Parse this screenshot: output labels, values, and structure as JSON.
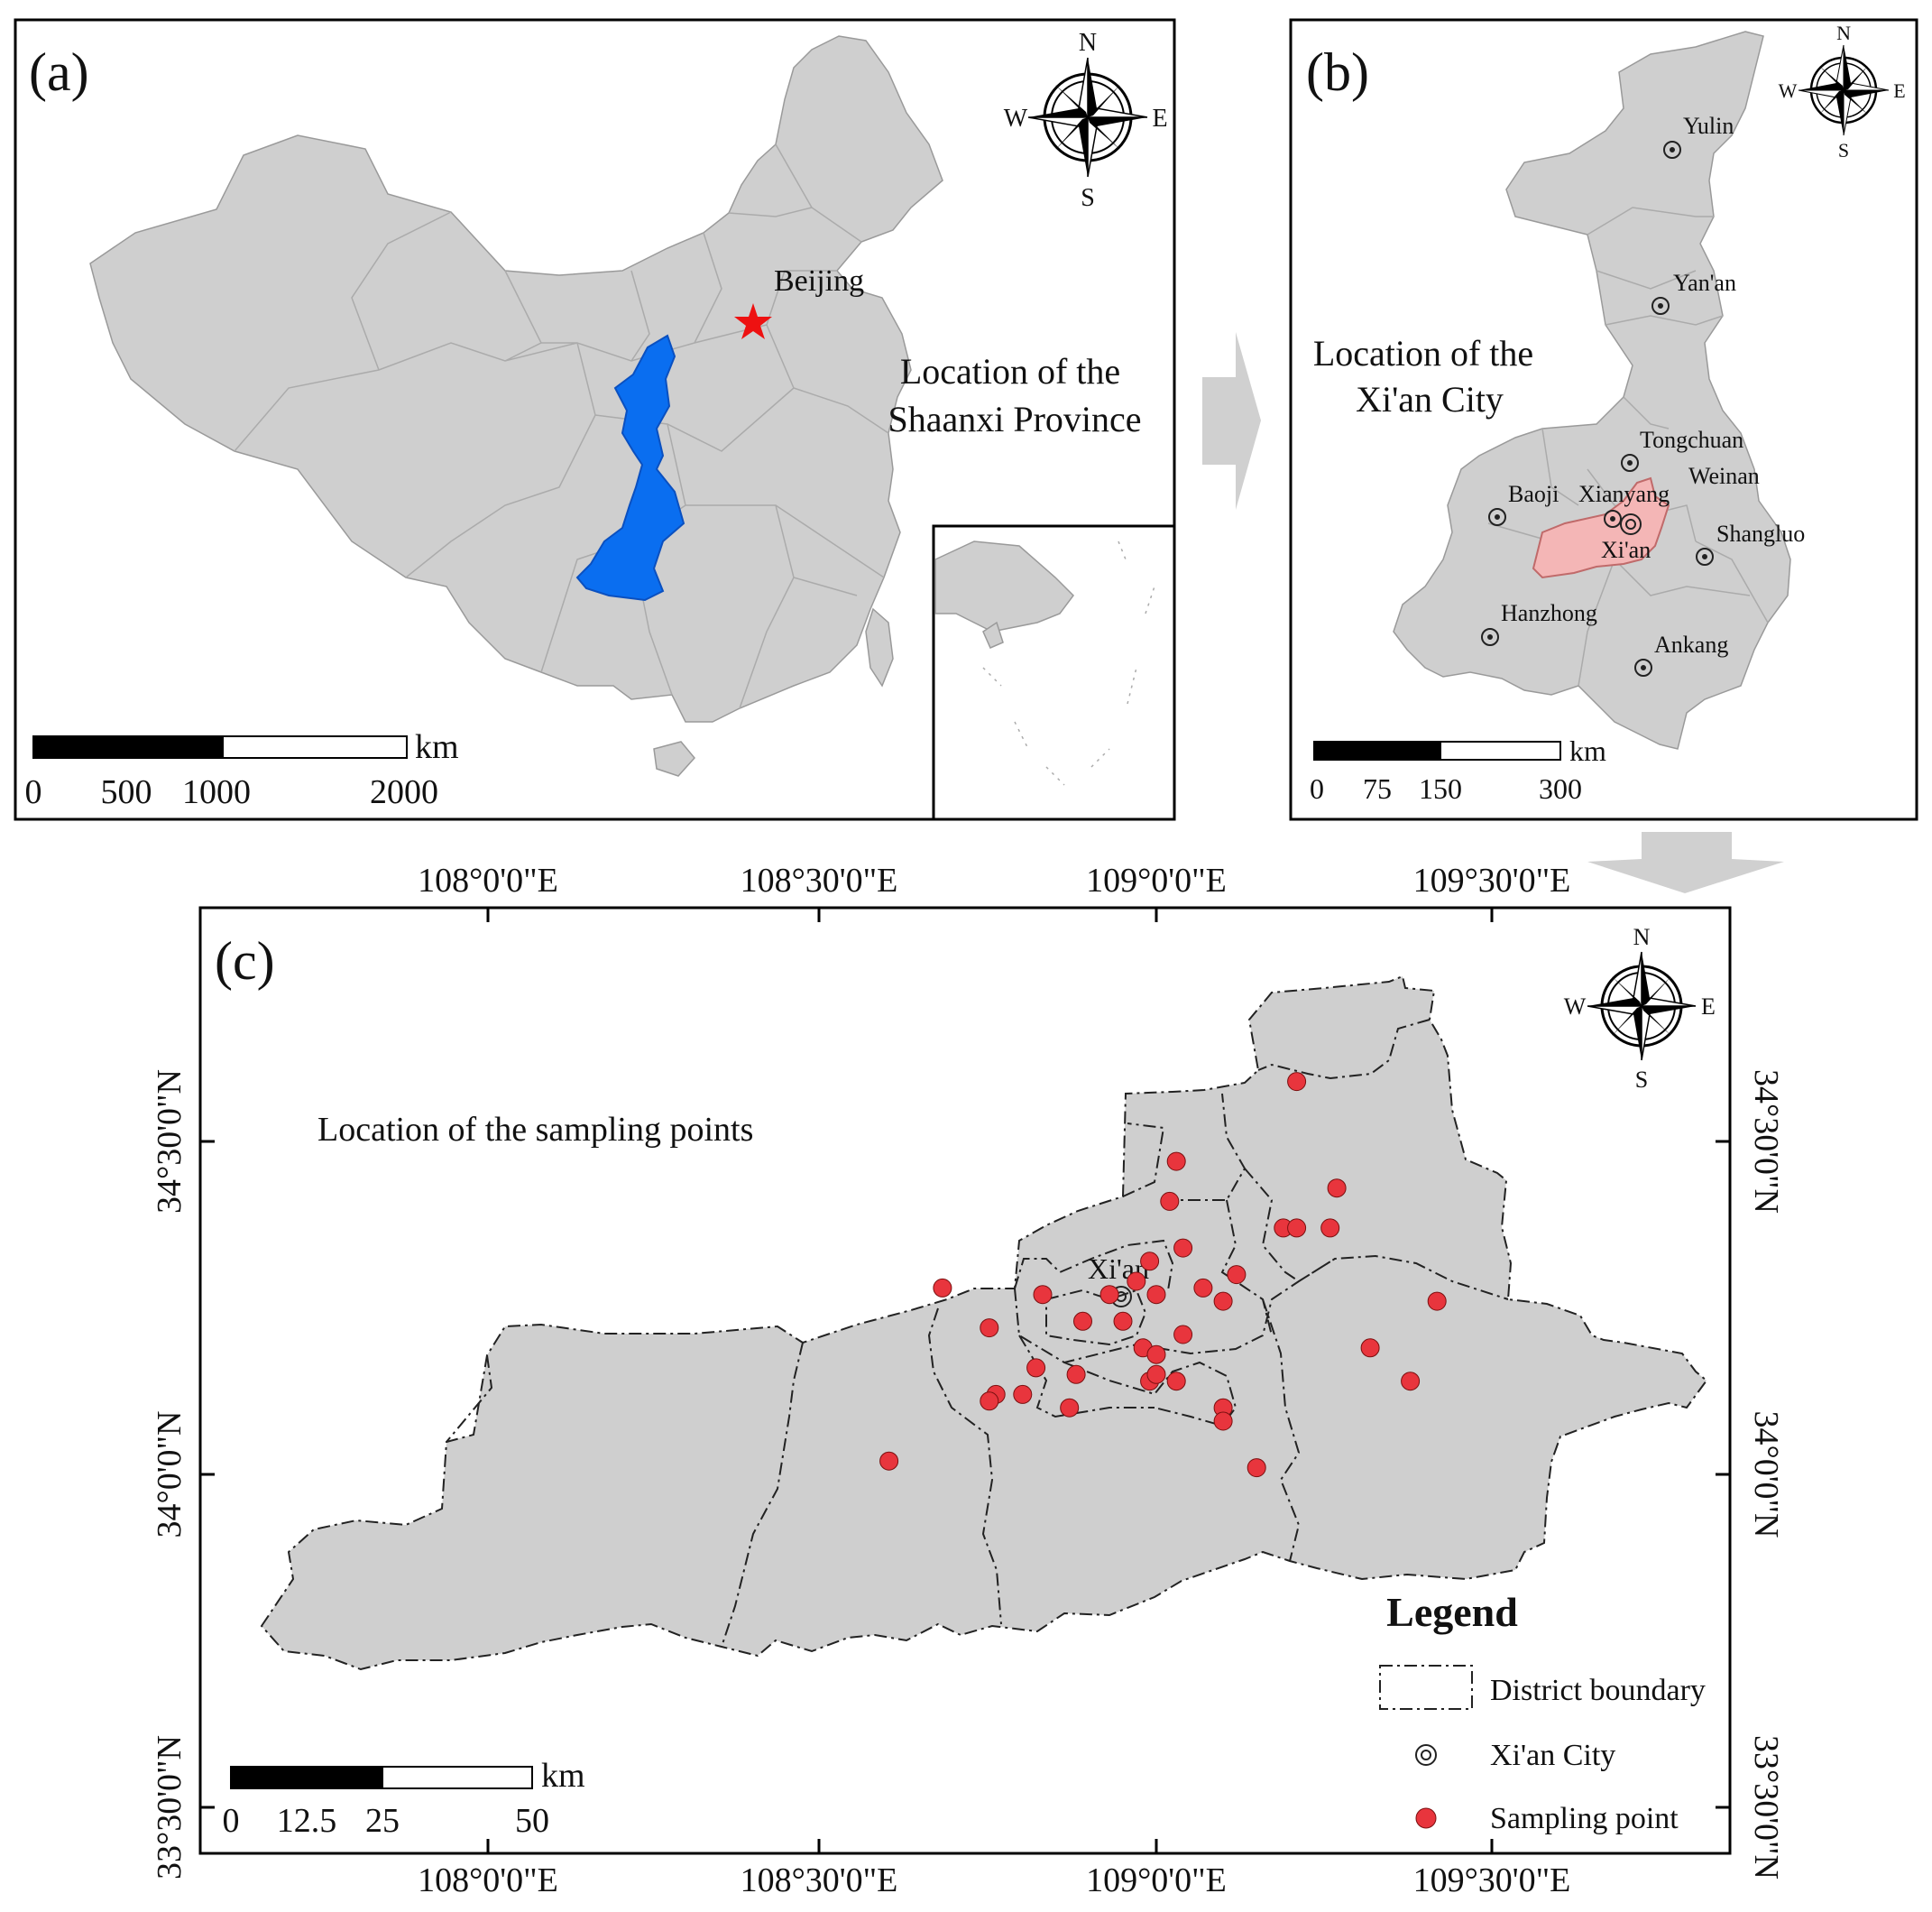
{
  "colors": {
    "land": "#cfcfcf",
    "shaanxi": "#0a6ef0",
    "xian_district": "#f4b6b6",
    "sampling_point": "#e8353d",
    "beijing_star": "#ee1111",
    "arrow": "#d0d0d0"
  },
  "panel_a": {
    "label": "(a)",
    "title_line1": "Location of the",
    "title_line2": "Shaanxi Province",
    "beijing_label": "Beijing",
    "beijing_marker_icon": "star-icon",
    "compass": {
      "n": "N",
      "s": "S",
      "e": "E",
      "w": "W"
    },
    "scale_bar": {
      "unit": "km",
      "ticks": [
        "0",
        "500",
        "1000",
        "2000"
      ]
    }
  },
  "panel_b": {
    "label": "(b)",
    "title_line1": "Location of the",
    "title_line2": "Xi'an City",
    "cities": [
      "Yulin",
      "Yan'an",
      "Tongchuan",
      "Weinan",
      "Baoji",
      "Xianyang",
      "Shangluo",
      "Xi'an",
      "Hanzhong",
      "Ankang"
    ],
    "compass": {
      "n": "N",
      "s": "S",
      "e": "E",
      "w": "W"
    },
    "scale_bar": {
      "unit": "km",
      "ticks": [
        "0",
        "75",
        "150",
        "300"
      ]
    }
  },
  "panel_c": {
    "label": "(c)",
    "title": "Location of the sampling points",
    "city_label": "Xi'an",
    "compass": {
      "n": "N",
      "s": "S",
      "e": "E",
      "w": "W"
    },
    "lon_ticks": [
      "108°0'0\"E",
      "108°30'0\"E",
      "109°0'0\"E",
      "109°30'0\"E"
    ],
    "lat_ticks": [
      "34°30'0\"N",
      "34°0'0\"N",
      "33°30'0\"N"
    ],
    "scale_bar": {
      "unit": "km",
      "ticks": [
        "0",
        "12.5",
        "25",
        "50"
      ]
    },
    "legend": {
      "title": "Legend",
      "items": [
        {
          "label": "District boundary",
          "symbol": "dash-dot-rectangle"
        },
        {
          "label": "Xi'an City",
          "symbol": "double-circle-icon"
        },
        {
          "label": "Sampling point",
          "symbol": "red-dot"
        }
      ]
    },
    "sampling_points": [
      [
        109.21,
        34.59
      ],
      [
        109.03,
        34.47
      ],
      [
        109.27,
        34.43
      ],
      [
        109.02,
        34.41
      ],
      [
        109.19,
        34.37
      ],
      [
        109.21,
        34.37
      ],
      [
        109.26,
        34.37
      ],
      [
        109.04,
        34.34
      ],
      [
        108.99,
        34.32
      ],
      [
        109.12,
        34.3
      ],
      [
        108.68,
        34.28
      ],
      [
        108.83,
        34.27
      ],
      [
        108.93,
        34.27
      ],
      [
        108.97,
        34.29
      ],
      [
        109.0,
        34.27
      ],
      [
        109.07,
        34.28
      ],
      [
        109.1,
        34.26
      ],
      [
        109.42,
        34.26
      ],
      [
        108.75,
        34.22
      ],
      [
        108.89,
        34.23
      ],
      [
        108.95,
        34.23
      ],
      [
        109.04,
        34.21
      ],
      [
        109.32,
        34.19
      ],
      [
        108.98,
        34.19
      ],
      [
        109.0,
        34.18
      ],
      [
        108.82,
        34.16
      ],
      [
        108.88,
        34.15
      ],
      [
        108.99,
        34.14
      ],
      [
        109.0,
        34.15
      ],
      [
        109.03,
        34.14
      ],
      [
        109.38,
        34.14
      ],
      [
        108.8,
        34.12
      ],
      [
        108.76,
        34.12
      ],
      [
        108.75,
        34.11
      ],
      [
        108.87,
        34.1
      ],
      [
        109.1,
        34.1
      ],
      [
        109.1,
        34.08
      ],
      [
        108.6,
        34.02
      ],
      [
        109.15,
        34.01
      ]
    ]
  }
}
